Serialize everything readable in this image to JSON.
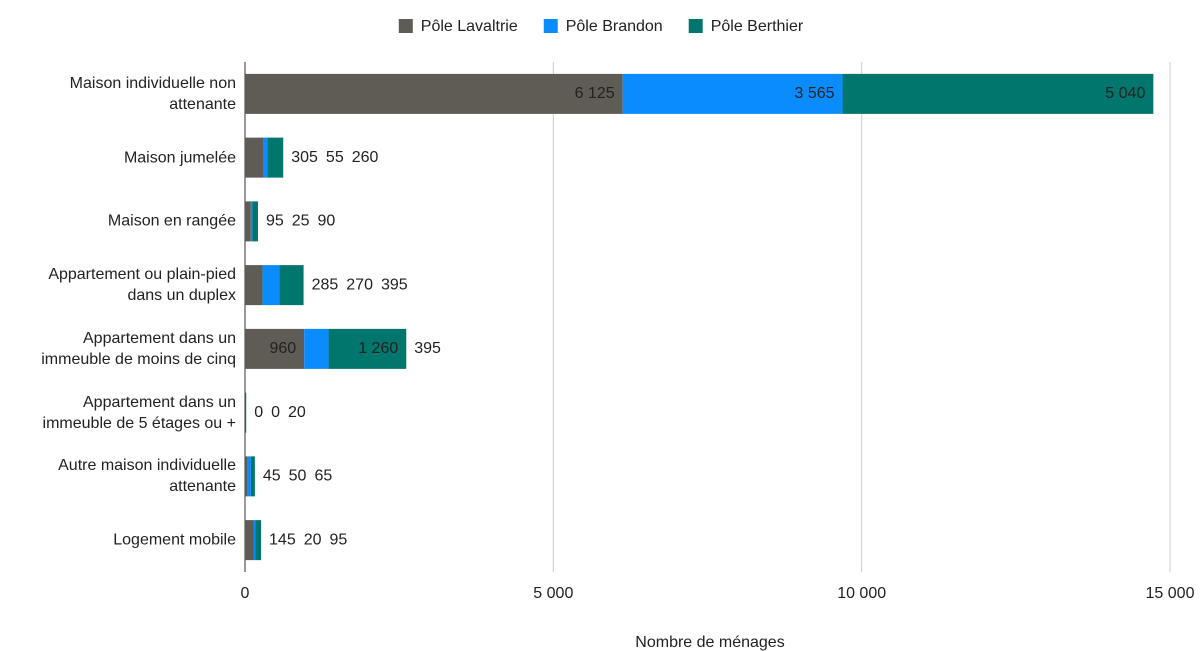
{
  "chart_data": {
    "type": "stacked_horizontal_bar",
    "x_label": "Nombre de ménages",
    "categories": [
      "Maison individuelle non\nattenante",
      "Maison jumelée",
      "Maison en rangée",
      "Appartement ou plain-pied\ndans un duplex",
      "Appartement dans un\nimmeuble de moins de cinq",
      "Appartement dans un\nimmeuble de 5 étages ou +",
      "Autre maison individuelle\nattenante",
      "Logement mobile"
    ],
    "series": [
      {
        "name": "Pôle Lavaltrie",
        "color": "#5f5b55",
        "label_color": "#6b6b6b",
        "values": [
          6125,
          305,
          95,
          285,
          960,
          0,
          45,
          145
        ],
        "value_labels": [
          "6 125",
          "305",
          "95",
          "285",
          "960",
          "0",
          "45",
          "145"
        ]
      },
      {
        "name": "Pôle Brandon",
        "color": "#0a8cff",
        "label_color": "#1a8fe8",
        "values": [
          3565,
          55,
          25,
          270,
          395,
          0,
          50,
          20
        ],
        "value_labels": [
          "3 565",
          "55",
          "25",
          "270",
          "395",
          "0",
          "50",
          "20"
        ]
      },
      {
        "name": "Pôle Berthier",
        "color": "#00766c",
        "label_color": "#0b7a70",
        "values": [
          5040,
          260,
          90,
          395,
          1260,
          20,
          65,
          95
        ],
        "value_labels": [
          "5 040",
          "260",
          "90",
          "395",
          "1 260",
          "20",
          "65",
          "95"
        ]
      }
    ],
    "xlim": [
      0,
      15000
    ],
    "xticks": [
      0,
      {
        "value": 5000,
        "label": "5 000"
      },
      {
        "value": 10000,
        "label": "10 000"
      },
      {
        "value": 15000,
        "label": "15 000"
      }
    ],
    "grid": true,
    "legend": "top"
  }
}
